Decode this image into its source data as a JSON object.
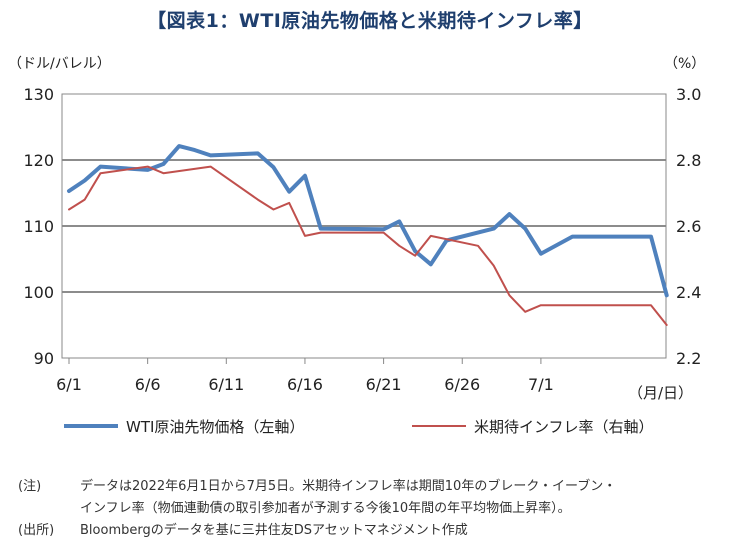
{
  "chart_data": {
    "type": "line",
    "title": "【図表1：WTI原油先物価格と米期待インフレ率】",
    "left_axis_label": "（ドル/バレル）",
    "right_axis_label": "（%）",
    "x_unit_label": "（月/日）",
    "x_tick_labels": [
      "6/1",
      "6/6",
      "6/11",
      "6/16",
      "6/21",
      "6/26",
      "7/1"
    ],
    "left_ylim": [
      90,
      130
    ],
    "left_ticks": [
      "90",
      "100",
      "110",
      "120",
      "130"
    ],
    "right_ylim": [
      2.2,
      3.0
    ],
    "right_ticks": [
      "2.2",
      "2.4",
      "2.6",
      "2.8",
      "3.0"
    ],
    "series": [
      {
        "name": "WTI原油先物価格（左軸）",
        "axis": "left",
        "color": "#4f81bd",
        "x": [
          1,
          2,
          3,
          6,
          7,
          8,
          9,
          10,
          13,
          14,
          15,
          16,
          17,
          21,
          22,
          23,
          24,
          25,
          28,
          29,
          30,
          31,
          33,
          34,
          38,
          39
        ],
        "values": [
          115.3,
          116.9,
          119.0,
          118.5,
          119.4,
          122.1,
          121.5,
          120.7,
          121.0,
          118.9,
          115.2,
          117.6,
          109.6,
          109.5,
          110.7,
          106.2,
          104.2,
          107.8,
          109.6,
          111.8,
          109.6,
          105.8,
          108.4,
          108.4,
          108.4,
          99.5
        ]
      },
      {
        "name": "米期待インフレ率（右軸）",
        "axis": "right",
        "color": "#c0504d",
        "x": [
          1,
          2,
          3,
          6,
          7,
          10,
          13,
          14,
          15,
          16,
          17,
          21,
          22,
          23,
          24,
          27,
          28,
          29,
          30,
          31,
          33,
          34,
          38,
          39
        ],
        "values": [
          2.65,
          2.68,
          2.76,
          2.78,
          2.76,
          2.78,
          2.68,
          2.65,
          2.67,
          2.57,
          2.58,
          2.58,
          2.54,
          2.51,
          2.57,
          2.54,
          2.48,
          2.39,
          2.34,
          2.36,
          2.36,
          2.36,
          2.36,
          2.3
        ]
      }
    ]
  },
  "notes": {
    "note_label": "(注)",
    "note_text_line1": "データは2022年6月1日から7月5日。米期待インフレ率は期間10年のブレーク・イーブン・",
    "note_text_line2": "インフレ率（物価連動債の取引参加者が予測する今後10年間の年平均物価上昇率）。",
    "source_label": "(出所)",
    "source_text": "Bloombergのデータを基に三井住友DSアセットマネジメント作成"
  }
}
